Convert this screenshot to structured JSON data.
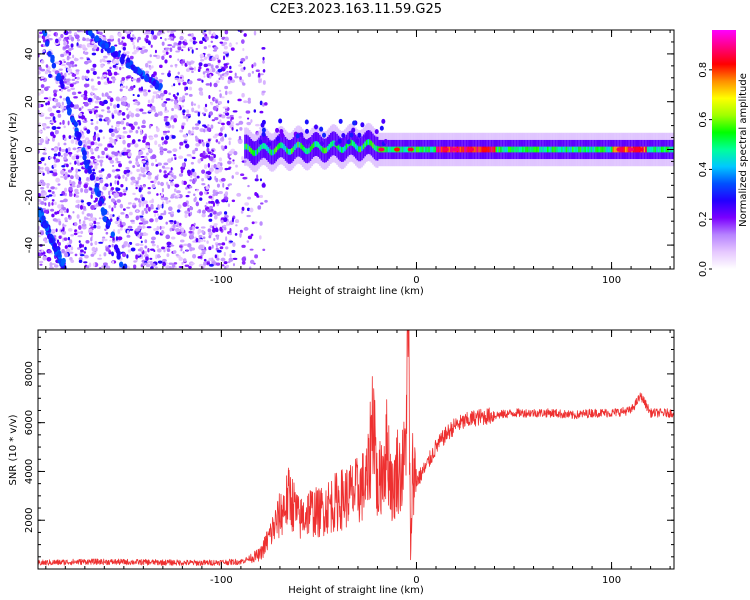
{
  "title": "C2E3.2023.163.11.59.G25",
  "chart_data": [
    {
      "type": "heatmap",
      "xlabel": "Height of straight line (km)",
      "ylabel": "Frequency (Hz)",
      "xlim": [
        -194,
        132
      ],
      "ylim": [
        -50,
        50
      ],
      "xticks": [
        -100,
        0,
        100
      ],
      "xtick_labels": [
        "-100",
        "0",
        "100"
      ],
      "yticks": [
        -40,
        -20,
        0,
        20,
        40
      ],
      "ytick_labels": [
        "-40",
        "-20",
        "0",
        "20",
        "40"
      ],
      "colorbar": {
        "label": "Normalized spectral amplitude",
        "range": [
          0,
          0.96
        ],
        "ticks": [
          0.0,
          0.2,
          0.4,
          0.6,
          0.8
        ],
        "tick_labels": [
          "0.0",
          "0.2",
          "0.4",
          "0.6",
          "0.8"
        ],
        "colormap": [
          "#ffffff",
          "#e6c8ff",
          "#b784ff",
          "#7b00ff",
          "#2300ff",
          "#0050ff",
          "#00c8ff",
          "#00ff9a",
          "#00ff00",
          "#a0ff00",
          "#ffff00",
          "#ff9000",
          "#ff0000",
          "#ff0080",
          "#ff00ff"
        ]
      },
      "features": {
        "noise_region_x": [
          -194,
          -85
        ],
        "signal_band_center_hz": 0,
        "diagonal_traces": [
          {
            "x": [
              -192,
              -150
            ],
            "y": [
              50,
              -50
            ]
          },
          {
            "x": [
              -170,
              -130
            ],
            "y": [
              50,
              25
            ]
          },
          {
            "x": [
              -194,
              -180
            ],
            "y": [
              -25,
              -50
            ]
          }
        ]
      }
    },
    {
      "type": "line",
      "xlabel": "Height of straight line (km)",
      "ylabel": "SNR (10 * v/v)",
      "xlim": [
        -194,
        132
      ],
      "ylim": [
        0,
        9800
      ],
      "xticks": [
        -100,
        0,
        100
      ],
      "xtick_labels": [
        "-100",
        "0",
        "100"
      ],
      "yticks": [
        2000,
        4000,
        6000,
        8000
      ],
      "ytick_labels": [
        "2000",
        "4000",
        "6000",
        "8000"
      ],
      "color": "#ee3030",
      "series": [
        {
          "x": [
            -194,
            -170,
            -140,
            -110,
            -90,
            -80,
            -75,
            -70,
            -65,
            -60,
            -55,
            -50,
            -45,
            -40,
            -35,
            -30,
            -25,
            -22,
            -20,
            -18,
            -15,
            -12,
            -10,
            -8,
            -6,
            -4,
            -3,
            -2,
            0,
            5,
            10,
            15,
            20,
            30,
            40,
            50,
            60,
            70,
            80,
            90,
            100,
            110,
            115,
            120,
            132
          ],
          "y": [
            250,
            300,
            280,
            250,
            300,
            600,
            1400,
            2200,
            3000,
            2000,
            2400,
            2300,
            2600,
            2800,
            3000,
            3200,
            3600,
            6800,
            3000,
            4000,
            5000,
            3000,
            4200,
            3800,
            4500,
            9700,
            100,
            4200,
            3600,
            4200,
            5000,
            5500,
            5900,
            6200,
            6300,
            6400,
            6400,
            6400,
            6300,
            6400,
            6400,
            6500,
            7100,
            6400,
            6400
          ]
        }
      ]
    }
  ]
}
